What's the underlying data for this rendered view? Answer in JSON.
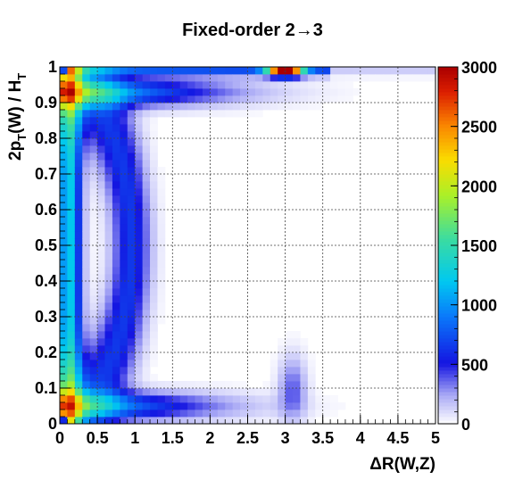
{
  "chart_data": {
    "type": "heatmap",
    "title": "Fixed-order 2→3",
    "xlabel": "ΔR(W,Z)",
    "ylabel_parts": [
      "2p",
      "T",
      "(W) / H",
      "T"
    ],
    "xlim": [
      0,
      5
    ],
    "ylim": [
      0,
      1
    ],
    "zlim": [
      0,
      3000
    ],
    "grid": true,
    "colormap": "rainbow (white→blue→cyan→green→yellow→red)",
    "x_ticks": [
      "0",
      "0.5",
      "1",
      "1.5",
      "2",
      "2.5",
      "3",
      "3.5",
      "4",
      "4.5",
      "5"
    ],
    "y_ticks": [
      "0",
      "0.1",
      "0.2",
      "0.3",
      "0.4",
      "0.5",
      "0.6",
      "0.7",
      "0.8",
      "0.9",
      "1"
    ],
    "z_ticks": [
      "0",
      "500",
      "1000",
      "1500",
      "2000",
      "2500",
      "3000"
    ],
    "bins": {
      "nx": 50,
      "ny": 50
    },
    "features": [
      {
        "region": "ridge along y≈0.93 (top band)",
        "value_approx": 1200
      },
      {
        "region": "ridge along x≈0.1 (left edge)",
        "value_approx": 1300
      },
      {
        "region": "bottom band y≈0.04",
        "value_approx": 1100
      },
      {
        "region": "peak near (3.0, 0.99)",
        "value_approx": 3000
      }
    ]
  }
}
